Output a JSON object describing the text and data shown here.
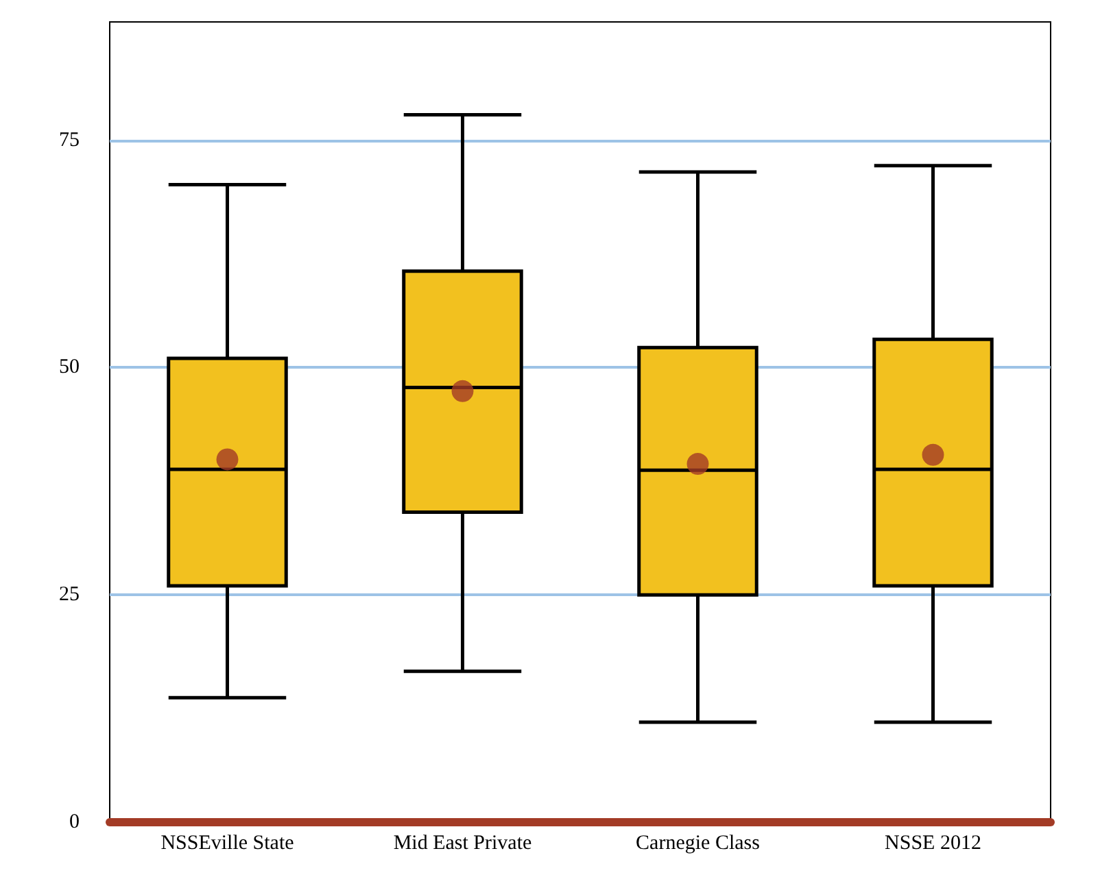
{
  "chart_data": {
    "type": "box",
    "categories": [
      "NSSEville State",
      "Mid East Private",
      "Carnegie Class",
      "NSSE 2012"
    ],
    "series": [
      {
        "color": "#f2c11f",
        "boxes": [
          {
            "low": 13.7,
            "q1": 26,
            "median": 38.8,
            "q3": 51,
            "high": 70.1
          },
          {
            "low": 16.6,
            "q1": 34.1,
            "median": 47.8,
            "q3": 60.6,
            "high": 77.8
          },
          {
            "low": 11,
            "q1": 25,
            "median": 38.7,
            "q3": 52.2,
            "high": 71.5
          },
          {
            "low": 11,
            "q1": 26,
            "median": 38.8,
            "q3": 53.1,
            "high": 72.2
          }
        ]
      },
      {
        "type": "scatter",
        "color": "#a33b26",
        "marker": "circle",
        "x": [
          "NSSEville State",
          "Mid East Private",
          "Carnegie Class",
          "NSSE 2012"
        ],
        "values": [
          39.9,
          47.4,
          39.4,
          40.4
        ]
      }
    ],
    "ylim": [
      0,
      88
    ],
    "yticks": [
      0,
      25,
      50,
      75
    ],
    "grid": "y"
  }
}
